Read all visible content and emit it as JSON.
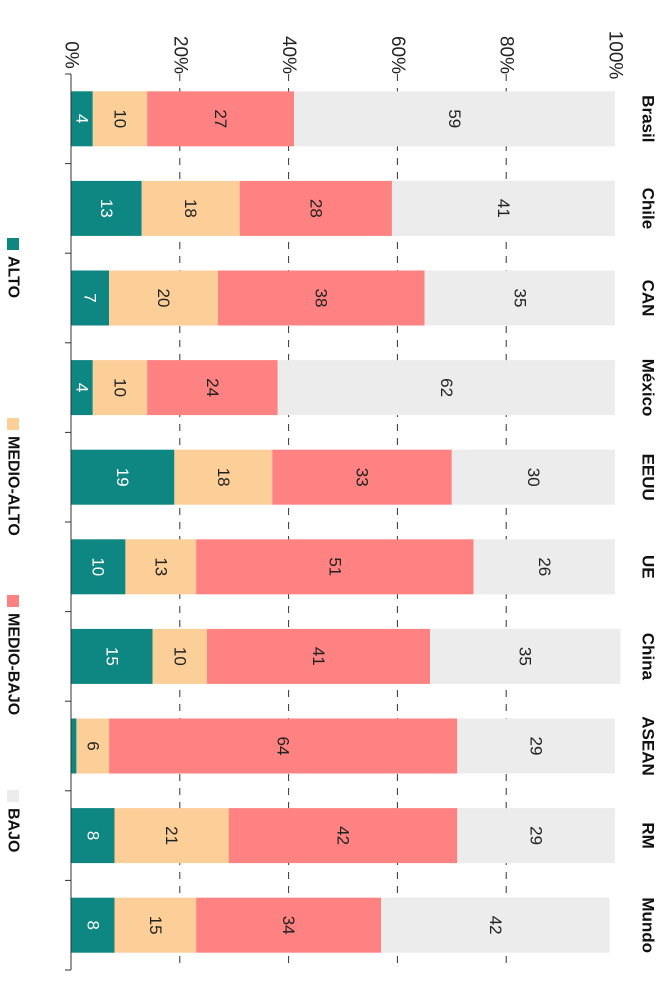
{
  "chart_data": {
    "type": "bar",
    "stacked": true,
    "orientation": "rotated-90",
    "categories": [
      "Brasil",
      "Chile",
      "CAN",
      "México",
      "EEUU",
      "UE",
      "China",
      "ASEAN",
      "RM",
      "Mundo"
    ],
    "series": [
      {
        "name": "ALTO",
        "color": "#0e8682",
        "values": [
          4,
          13,
          7,
          4,
          19,
          10,
          15,
          1,
          8,
          8
        ],
        "labels": [
          "4",
          "13",
          "7",
          "4",
          "19",
          "10",
          "15",
          "",
          "8",
          "8"
        ]
      },
      {
        "name": "MEDIO-ALTO",
        "color": "#fdcf98",
        "values": [
          10,
          18,
          20,
          10,
          18,
          13,
          10,
          6,
          21,
          15
        ],
        "labels": [
          "10",
          "18",
          "20",
          "10",
          "18",
          "13",
          "10",
          "6",
          "21",
          "15"
        ]
      },
      {
        "name": "MEDIO-BAJO",
        "color": "#fe8282",
        "values": [
          27,
          28,
          38,
          24,
          33,
          51,
          41,
          64,
          42,
          34
        ],
        "labels": [
          "27",
          "28",
          "38",
          "24",
          "33",
          "51",
          "41",
          "64",
          "42",
          "34"
        ]
      },
      {
        "name": "BAJO",
        "color": "#ececec",
        "values": [
          59,
          41,
          35,
          62,
          30,
          26,
          35,
          29,
          29,
          42
        ],
        "labels": [
          "59",
          "41",
          "35",
          "62",
          "30",
          "26",
          "35",
          "29",
          "29",
          "42"
        ]
      }
    ],
    "ylim": [
      0,
      100
    ],
    "ytick_labels": [
      "0%",
      "20%",
      "40%",
      "60%",
      "80%",
      "100%"
    ],
    "grid": true,
    "legend_position": "bottom"
  }
}
